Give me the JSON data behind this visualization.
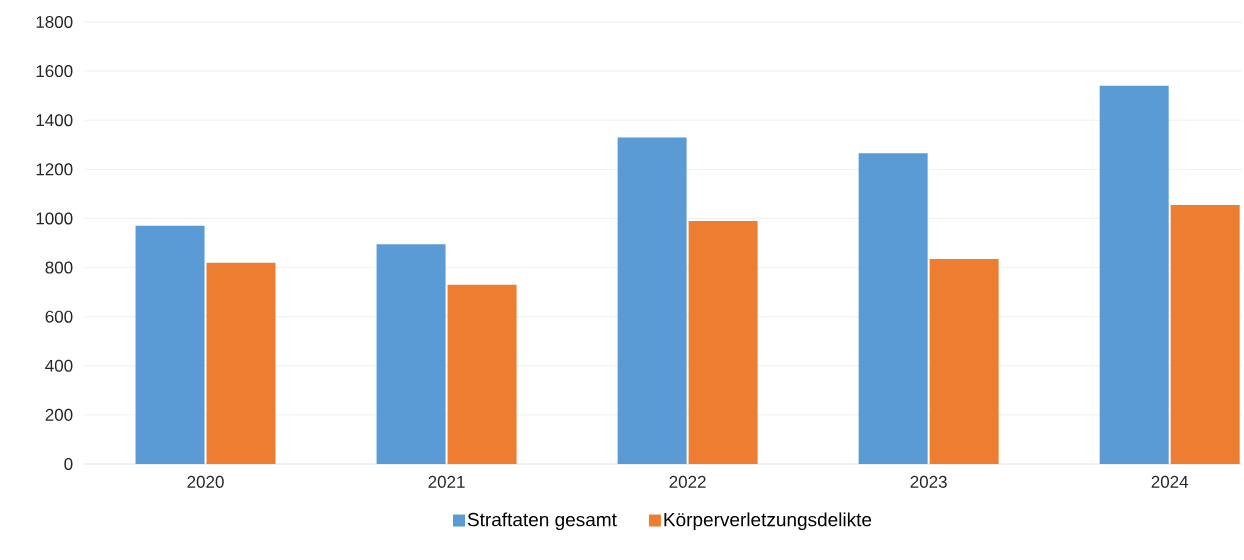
{
  "chart_data": {
    "type": "bar",
    "categories": [
      "2020",
      "2021",
      "2022",
      "2023",
      "2024"
    ],
    "series": [
      {
        "name": "Straftaten gesamt",
        "color": "#5b9bd5",
        "values": [
          970,
          895,
          1330,
          1265,
          1540
        ]
      },
      {
        "name": "Körperverletzungsdelikte",
        "color": "#ed7d31",
        "values": [
          820,
          730,
          990,
          835,
          1055
        ]
      }
    ],
    "ylim": [
      0,
      1800
    ],
    "yticks": [
      0,
      200,
      400,
      600,
      800,
      1000,
      1200,
      1400,
      1600,
      1800
    ],
    "grid": "y",
    "legend": "bottom"
  }
}
